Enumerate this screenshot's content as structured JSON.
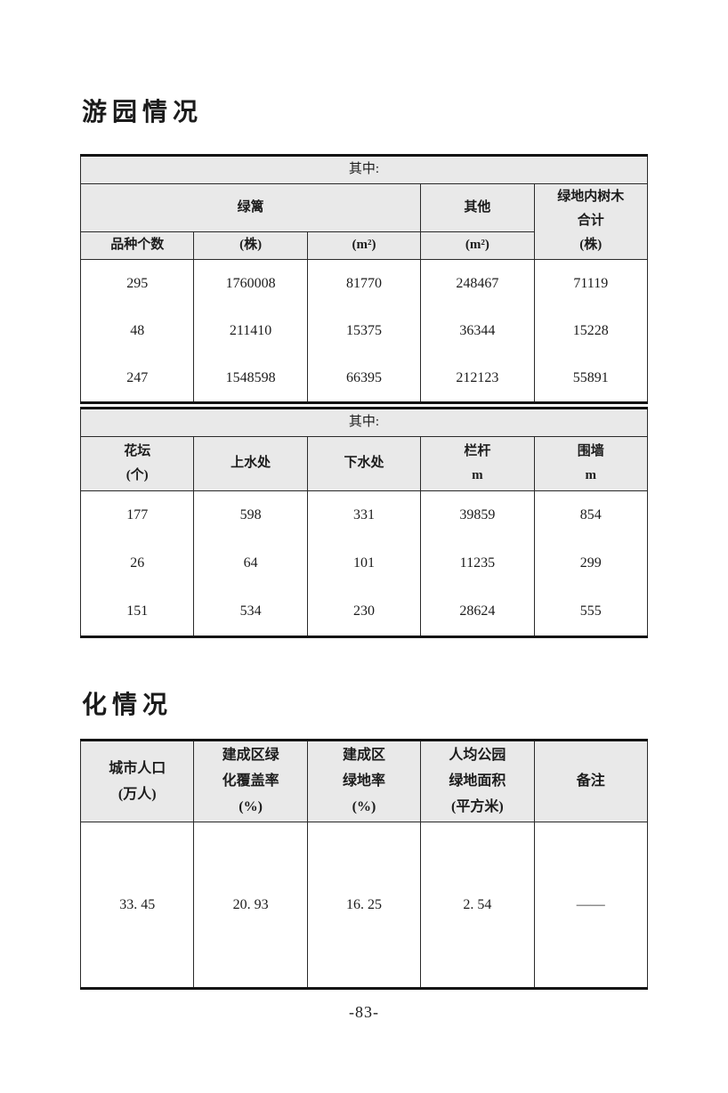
{
  "page": {
    "title1": "游园情况",
    "title2": "化情况",
    "page_number": "-83-"
  },
  "table1": {
    "among": "其中:",
    "hedge_group": "绿篱",
    "other_group": "其他",
    "trees_total": "绿地内树木\n合计\n(株)",
    "units": [
      "品种个数",
      "(株)",
      "(m²)",
      "(m²)"
    ],
    "rows": [
      [
        "295",
        "1760008",
        "81770",
        "248467",
        "71119"
      ],
      [
        "48",
        "211410",
        "15375",
        "36344",
        "15228"
      ],
      [
        "247",
        "1548598",
        "66395",
        "212123",
        "55891"
      ]
    ]
  },
  "table2": {
    "among": "其中:",
    "headers": [
      "花坛\n(个)",
      "上水处",
      "下水处",
      "栏杆\nm",
      "围墙\nm"
    ],
    "rows": [
      [
        "177",
        "598",
        "331",
        "39859",
        "854"
      ],
      [
        "26",
        "64",
        "101",
        "11235",
        "299"
      ],
      [
        "151",
        "534",
        "230",
        "28624",
        "555"
      ]
    ]
  },
  "table3": {
    "headers": [
      "城市人口\n(万人)",
      "建成区绿\n化覆盖率\n(%)",
      "建成区\n绿地率\n(%)",
      "人均公园\n绿地面积\n(平方米)",
      "备注"
    ],
    "rows": [
      [
        "33. 45",
        "20. 93",
        "16. 25",
        "2. 54",
        "——"
      ]
    ]
  },
  "colors": {
    "header_bg": "#e9e9e9",
    "border_thick": "#141414",
    "border_thin": "#2a2a2a",
    "text": "#1c1c1c"
  }
}
